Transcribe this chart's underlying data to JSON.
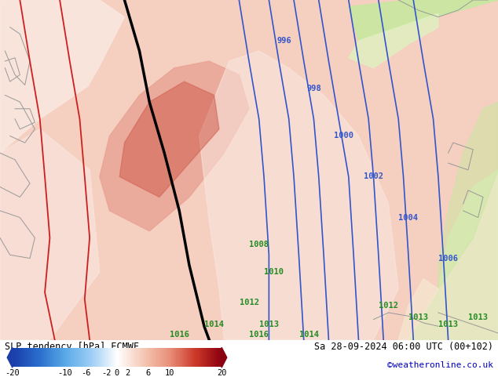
{
  "title_left": "SLP tendency [hPa] ECMWF",
  "title_right": "Sa 28-09-2024 06:00 UTC (00+102)",
  "credit": "©weatheronline.co.uk",
  "colorbar_ticks": [
    -20,
    -10,
    -6,
    -2,
    0,
    2,
    6,
    10,
    20
  ],
  "colorbar_colors_left": "#1a4aab",
  "colorbar_colors_right": "#8b0000",
  "bg_pink_light": "#f5cfc0",
  "bg_pink_lighter": "#fae8e0",
  "bg_red_medium": "#e8a090",
  "bg_red_dark": "#d06050",
  "bg_green_light": "#c8e8a0",
  "bg_green_lighter": "#e0f0c0",
  "bg_cream": "#f5e8d0",
  "line_blue": "#3355cc",
  "line_red": "#cc2020",
  "line_black": "#000000",
  "line_gray": "#999999",
  "label_blue": "#3355cc",
  "label_green": "#228b22",
  "fig_width": 6.34,
  "fig_height": 4.9,
  "dpi": 100,
  "bottom_bar_height": 0.115,
  "bottom_bar_color": "#ffffff"
}
